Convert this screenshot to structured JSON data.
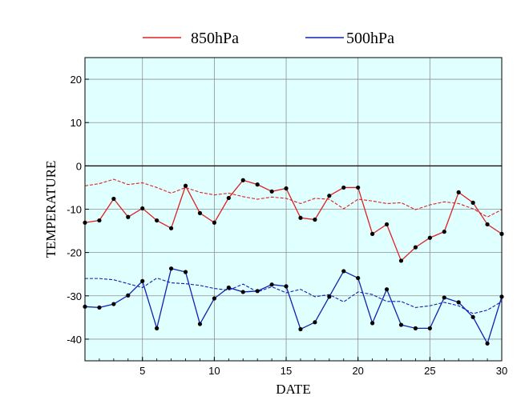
{
  "chart_data": {
    "type": "line",
    "xlabel": "DATE",
    "ylabel": "TEMPERATURE",
    "xlim": [
      1,
      30
    ],
    "ylim": [
      -45,
      25
    ],
    "xticks": [
      5,
      10,
      15,
      20,
      25,
      30
    ],
    "yticks": [
      20,
      10,
      0,
      -10,
      -20,
      -30,
      -40
    ],
    "grid": true,
    "legend_position": "top-center",
    "background_color": "#e0ffff",
    "x": [
      1,
      2,
      3,
      4,
      5,
      6,
      7,
      8,
      9,
      10,
      11,
      12,
      13,
      14,
      15,
      16,
      17,
      18,
      19,
      20,
      21,
      22,
      23,
      24,
      25,
      26,
      27,
      28,
      29,
      30
    ],
    "series": [
      {
        "name": "850hPa",
        "color": "#e02020",
        "values": [
          -13.1,
          -12.6,
          -7.6,
          -11.8,
          -9.8,
          -12.6,
          -14.4,
          -4.6,
          -10.9,
          -13.1,
          -7.4,
          -3.3,
          -4.3,
          -5.9,
          -5.2,
          -12.0,
          -12.4,
          -6.9,
          -5.0,
          -5.0,
          -15.7,
          -13.5,
          -21.9,
          -18.8,
          -16.6,
          -15.2,
          -6.1,
          -8.5,
          -13.5,
          -15.7
        ]
      },
      {
        "name": "500hPa",
        "color": "#1020b0",
        "values": [
          -32.5,
          -32.7,
          -31.9,
          -29.9,
          -26.6,
          -37.5,
          -23.7,
          -24.5,
          -36.5,
          -30.6,
          -28.1,
          -29.1,
          -28.9,
          -27.4,
          -27.8,
          -37.7,
          -36.1,
          -30.2,
          -24.3,
          -25.9,
          -36.3,
          -28.5,
          -36.7,
          -37.5,
          -37.5,
          -30.4,
          -31.5,
          -34.9,
          -41.0,
          -30.2
        ]
      }
    ],
    "dashed_series": [
      {
        "color": "#e02020",
        "values": [
          -4.6,
          -4.1,
          -3.1,
          -4.3,
          -3.9,
          -5.0,
          -6.3,
          -5.0,
          -6.1,
          -6.7,
          -6.3,
          -7.1,
          -7.7,
          -7.2,
          -7.5,
          -8.7,
          -7.5,
          -7.7,
          -9.9,
          -7.7,
          -8.1,
          -8.7,
          -8.5,
          -10.1,
          -9.0,
          -8.3,
          -8.7,
          -9.9,
          -11.8,
          -10.1
        ]
      },
      {
        "color": "#1020b0",
        "values": [
          -26.0,
          -26.0,
          -26.3,
          -27.2,
          -28.1,
          -25.9,
          -27.0,
          -27.2,
          -27.6,
          -28.3,
          -28.7,
          -27.3,
          -29.1,
          -27.9,
          -29.3,
          -28.5,
          -30.2,
          -29.7,
          -31.4,
          -29.1,
          -29.7,
          -31.3,
          -31.3,
          -32.7,
          -32.3,
          -31.5,
          -32.3,
          -34.1,
          -33.3,
          -31.3
        ]
      }
    ]
  }
}
